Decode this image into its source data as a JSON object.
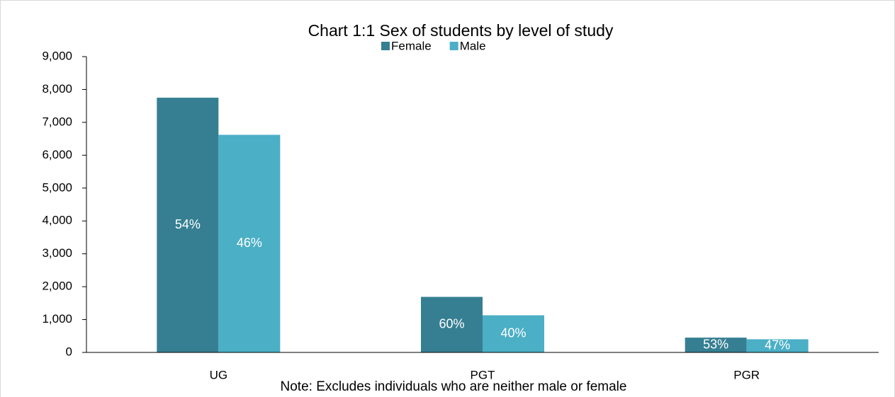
{
  "chart_data": {
    "type": "bar",
    "title": "Chart 1:1 Sex of students by level of study",
    "note": "Note: Excludes individuals who are neither male or female",
    "categories": [
      "UG",
      "PGT",
      "PGR"
    ],
    "series": [
      {
        "name": "Female",
        "color": "#367f93",
        "values": [
          7750,
          1690,
          450
        ],
        "labels": [
          "54%",
          "60%",
          "53%"
        ]
      },
      {
        "name": "Male",
        "color": "#4bafc6",
        "values": [
          6620,
          1130,
          400
        ],
        "labels": [
          "46%",
          "40%",
          "47%"
        ]
      }
    ],
    "ylim": [
      0,
      9000
    ],
    "yticks": [
      {
        "value": 0,
        "label": "0"
      },
      {
        "value": 1000,
        "label": "1,000"
      },
      {
        "value": 2000,
        "label": "2,000"
      },
      {
        "value": 3000,
        "label": "3,000"
      },
      {
        "value": 4000,
        "label": "4,000"
      },
      {
        "value": 5000,
        "label": "5,000"
      },
      {
        "value": 6000,
        "label": "6,000"
      },
      {
        "value": 7000,
        "label": "7,000"
      },
      {
        "value": 8000,
        "label": "8,000"
      },
      {
        "value": 9000,
        "label": "9,000"
      }
    ],
    "grid": false,
    "legend": "top"
  }
}
